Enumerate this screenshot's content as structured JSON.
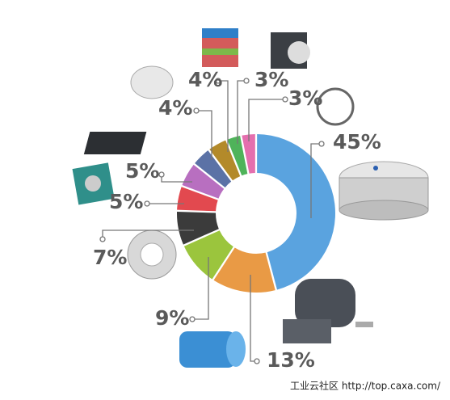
{
  "chart_data": {
    "type": "donut",
    "values": [
      45,
      13,
      9,
      7,
      5,
      5,
      4,
      4,
      3,
      3
    ],
    "value_labels": [
      "45%",
      "13%",
      "9%",
      "7%",
      "5%",
      "5%",
      "4%",
      "4%",
      "3%",
      "3%"
    ],
    "colors": [
      "#5aa3df",
      "#e99a45",
      "#9bc53d",
      "#3b3b3b",
      "#e2494f",
      "#b86fc0",
      "#5b72a6",
      "#b38a2a",
      "#4fb35a",
      "#e46fae"
    ],
    "watermark": "工业云社区 http://top.caxa.com/"
  }
}
